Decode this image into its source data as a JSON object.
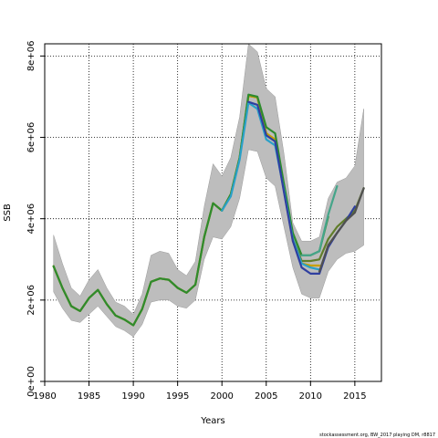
{
  "chart_data": {
    "type": "line",
    "xlabel": "Years",
    "ylabel": "SSB",
    "xlim": [
      1980,
      2018
    ],
    "ylim": [
      0,
      8300000
    ],
    "x_ticks": [
      1980,
      1985,
      1990,
      1995,
      2000,
      2005,
      2010,
      2015
    ],
    "x_tick_labels": [
      "1980",
      "1985",
      "1990",
      "1995",
      "2000",
      "2005",
      "2010",
      "2015"
    ],
    "y_ticks": [
      0,
      2000000,
      4000000,
      6000000,
      8000000
    ],
    "y_tick_labels": [
      "0e+00",
      "2e+06",
      "4e+06",
      "6e+06",
      "8e+06"
    ],
    "grid": true,
    "footnote": "stockassessment.org, BW_2017 playing DM, r8817",
    "band": {
      "color": "#bdbdbd",
      "x": [
        1981,
        1982,
        1983,
        1984,
        1985,
        1986,
        1987,
        1988,
        1989,
        1990,
        1991,
        1992,
        1993,
        1994,
        1995,
        1996,
        1997,
        1998,
        1999,
        2000,
        2001,
        2002,
        2003,
        2004,
        2005,
        2006,
        2007,
        2008,
        2009,
        2010,
        2011,
        2012,
        2013,
        2014,
        2015,
        2016
      ],
      "lower": [
        2200000,
        1800000,
        1500000,
        1450000,
        1650000,
        1850000,
        1600000,
        1350000,
        1250000,
        1100000,
        1400000,
        1950000,
        2000000,
        2000000,
        1850000,
        1800000,
        2000000,
        3000000,
        3550000,
        3500000,
        3800000,
        4500000,
        5700000,
        5650000,
        5000000,
        4800000,
        3800000,
        2800000,
        2150000,
        2050000,
        2050000,
        2700000,
        3000000,
        3150000,
        3200000,
        3350000
      ],
      "upper": [
        3600000,
        2900000,
        2300000,
        2100000,
        2500000,
        2750000,
        2300000,
        1950000,
        1850000,
        1650000,
        2150000,
        3100000,
        3200000,
        3150000,
        2750000,
        2600000,
        2950000,
        4300000,
        5350000,
        5050000,
        5500000,
        6500000,
        8300000,
        8100000,
        7200000,
        7000000,
        5600000,
        3900000,
        3450000,
        3450000,
        3550000,
        4500000,
        4900000,
        5000000,
        5300000,
        6700000
      ]
    },
    "series": [
      {
        "color": "#607d2a",
        "x": [
          1981,
          1982,
          1983,
          1984,
          1985,
          1986,
          1987,
          1988,
          1989,
          1990,
          1991,
          1992,
          1993,
          1994,
          1995,
          1996,
          1997,
          1998,
          1999,
          2000,
          2001,
          2002,
          2003,
          2004,
          2005,
          2006,
          2007,
          2008,
          2009,
          2010,
          2011,
          2012,
          2013,
          2014,
          2015,
          2016
        ],
        "values": [
          2830000,
          2300000,
          1850000,
          1730000,
          2050000,
          2250000,
          1900000,
          1620000,
          1520000,
          1380000,
          1780000,
          2450000,
          2530000,
          2500000,
          2300000,
          2180000,
          2380000,
          3550000,
          4380000,
          4200000,
          4600000,
          5500000,
          7020000,
          6980000,
          6100000,
          5900000,
          4750000,
          3500000,
          2960000,
          2960000,
          3000000,
          3500000,
          3800000,
          4000000,
          4200000,
          4750000
        ]
      },
      {
        "color": "#c8a000",
        "x": [
          1981,
          1982,
          1983,
          1984,
          1985,
          1986,
          1987,
          1988,
          1989,
          1990,
          1991,
          1992,
          1993,
          1994,
          1995,
          1996,
          1997,
          1998,
          1999,
          2000,
          2001,
          2002,
          2003,
          2004,
          2005,
          2006,
          2007,
          2008,
          2009,
          2010,
          2011
        ],
        "values": [
          2830000,
          2300000,
          1850000,
          1730000,
          2050000,
          2250000,
          1900000,
          1620000,
          1520000,
          1380000,
          1780000,
          2450000,
          2530000,
          2500000,
          2300000,
          2180000,
          2380000,
          3550000,
          4380000,
          4200000,
          4600000,
          5500000,
          7020000,
          6980000,
          6100000,
          5950000,
          4700000,
          3450000,
          2900000,
          2850000,
          2850000
        ]
      },
      {
        "color": "#2e8b2e",
        "x": [
          1981,
          1982,
          1983,
          1984,
          1985,
          1986,
          1987,
          1988,
          1989,
          1990,
          1991,
          1992,
          1993,
          1994,
          1995,
          1996,
          1997,
          1998,
          1999,
          2000,
          2001,
          2002,
          2003,
          2004,
          2005,
          2006,
          2007,
          2008,
          2009,
          2010,
          2011,
          2012
        ],
        "values": [
          2830000,
          2300000,
          1850000,
          1730000,
          2050000,
          2250000,
          1900000,
          1620000,
          1520000,
          1380000,
          1780000,
          2450000,
          2530000,
          2500000,
          2300000,
          2180000,
          2380000,
          3550000,
          4380000,
          4200000,
          4600000,
          5500000,
          7050000,
          7000000,
          6250000,
          6100000,
          4850000,
          3650000,
          3100000,
          3100000,
          3200000,
          4050000
        ]
      },
      {
        "color": "#45a58a",
        "x": [
          2009,
          2010,
          2011,
          2012,
          2013
        ],
        "values": [
          3100000,
          3100000,
          3200000,
          4100000,
          4800000
        ]
      },
      {
        "color": "#2aa0c8",
        "x": [
          2000,
          2001,
          2002,
          2003,
          2004,
          2005,
          2006,
          2007,
          2008,
          2009,
          2010,
          2011
        ],
        "values": [
          4200000,
          4550000,
          5450000,
          6850000,
          6700000,
          5950000,
          5800000,
          4700000,
          3500000,
          2900000,
          2800000,
          2750000
        ]
      },
      {
        "color": "#2f3fa0",
        "x": [
          2003,
          2004,
          2005,
          2006,
          2007,
          2008,
          2009,
          2010,
          2011,
          2012,
          2013,
          2014,
          2015
        ],
        "values": [
          6870000,
          6800000,
          6050000,
          5900000,
          4650000,
          3450000,
          2800000,
          2650000,
          2650000,
          3300000,
          3650000,
          3950000,
          4300000
        ]
      },
      {
        "color": "#505050",
        "x": [
          2011,
          2012,
          2013,
          2014,
          2015,
          2016
        ],
        "values": [
          2700000,
          3350000,
          3650000,
          3950000,
          4150000,
          4750000
        ]
      }
    ]
  }
}
